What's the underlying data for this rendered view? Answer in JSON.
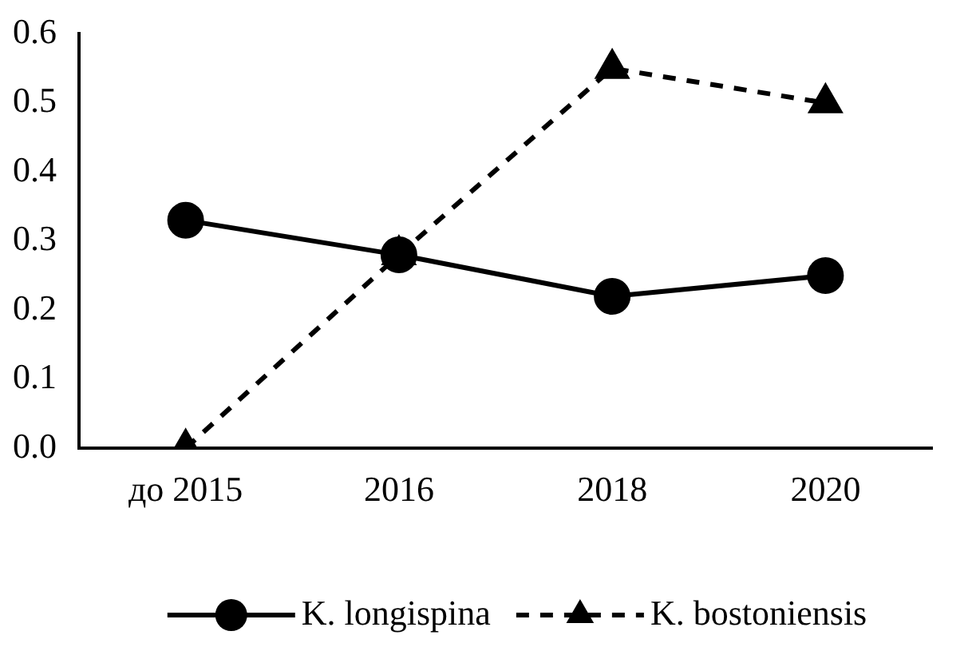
{
  "chart_data": {
    "type": "line",
    "categories": [
      "до 2015",
      "2016",
      "2018",
      "2020"
    ],
    "series": [
      {
        "name": "K. longispina",
        "color": "#000000",
        "marker": "circle",
        "line_style": "solid",
        "values": [
          0.33,
          0.28,
          0.22,
          0.25
        ]
      },
      {
        "name": "K. bostoniensis",
        "color": "#000000",
        "marker": "triangle",
        "line_style": "dashed",
        "values": [
          0.0,
          0.28,
          0.55,
          0.5
        ]
      }
    ],
    "ylim": [
      0,
      0.6
    ],
    "yticks": [
      {
        "value": 0,
        "label": "0.0"
      },
      0.1,
      0.2,
      0.3,
      0.4,
      0.5,
      0.6
    ],
    "grid": false,
    "legend": "bottom"
  }
}
